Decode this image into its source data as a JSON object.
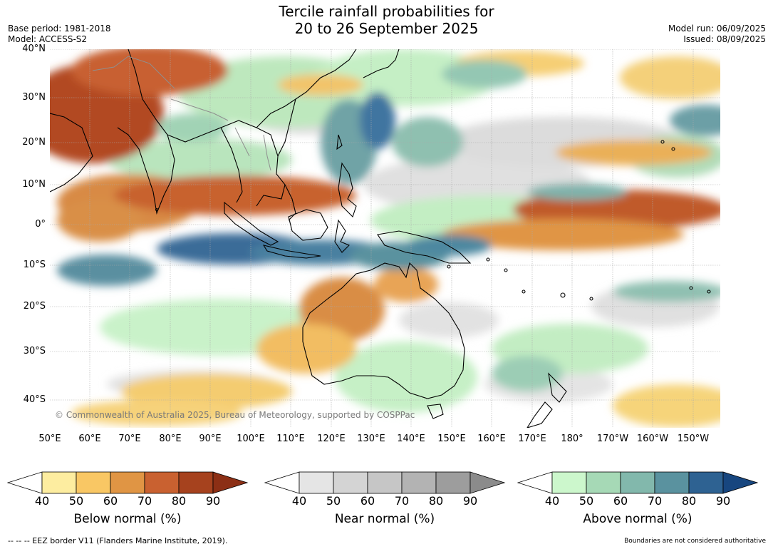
{
  "header": {
    "title_line1": "Tercile rainfall probabilities for",
    "title_line2": "20 to 26 September 2025",
    "base_period": "Base period: 1981-2018",
    "model": "Model: ACCESS-S2",
    "model_run": "Model run: 06/09/2025",
    "issued": "Issued: 08/09/2025"
  },
  "map": {
    "lat_labels": [
      "40°N",
      "30°N",
      "20°N",
      "10°N",
      "0°",
      "10°S",
      "20°S",
      "30°S",
      "40°S"
    ],
    "lon_labels": [
      "50°E",
      "60°E",
      "70°E",
      "80°E",
      "90°E",
      "100°E",
      "110°E",
      "120°E",
      "130°E",
      "140°E",
      "150°E",
      "160°E",
      "170°E",
      "180°",
      "170°W",
      "160°W",
      "150°W"
    ],
    "copyright": "© Commonwealth of Australia 2025, Bureau of Meteorology, supported by COSPPac",
    "colors": {
      "below": [
        "#fdeda0",
        "#f9c764",
        "#e09544",
        "#c96130",
        "#a6421e",
        "#8c2f15"
      ],
      "near": [
        "#e5e5e5",
        "#d4d4d4",
        "#c6c6c6",
        "#b3b3b3",
        "#9d9d9d",
        "#8b8b8b"
      ],
      "above": [
        "#ccf7cc",
        "#a6d9b6",
        "#82b8ac",
        "#5a929f",
        "#2e6292",
        "#17467f"
      ]
    }
  },
  "colorbars": [
    {
      "name": "below",
      "title": "Below normal (%)",
      "ticks": [
        "40",
        "50",
        "60",
        "70",
        "80",
        "90"
      ]
    },
    {
      "name": "near",
      "title": "Near normal (%)",
      "ticks": [
        "40",
        "50",
        "60",
        "70",
        "80",
        "90"
      ]
    },
    {
      "name": "above",
      "title": "Above normal (%)",
      "ticks": [
        "40",
        "50",
        "60",
        "70",
        "80",
        "90"
      ]
    }
  ],
  "footer": {
    "eez": "--  --  -- EEZ border V11 (Flanders Marine Institute, 2019).",
    "disclaimer": "Boundaries are not considered authoritative"
  }
}
